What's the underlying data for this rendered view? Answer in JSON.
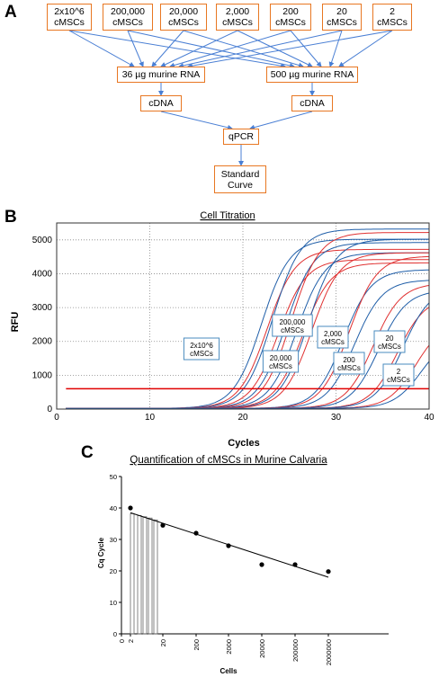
{
  "panels": {
    "a": "A",
    "b": "B",
    "c": "C"
  },
  "flowchart": {
    "cell_boxes": [
      "2x10^6\ncMSCs",
      "200,000\ncMSCs",
      "20,000\ncMSCs",
      "2,000\ncMSCs",
      "200\ncMSCs",
      "20\ncMSCs",
      "2\ncMSCs"
    ],
    "rna_left": "36 µg murine RNA",
    "rna_right": "500 µg murine RNA",
    "cdna_left": "cDNA",
    "cdna_right": "cDNA",
    "qpcr": "qPCR",
    "standard_curve": "Standard\nCurve",
    "border_color": "#e87722",
    "arrow_color": "#4a7fd4"
  },
  "chart_data": [
    {
      "type": "line",
      "title": "Cell Titration",
      "xlabel": "Cycles",
      "ylabel": "RFU",
      "xlim": [
        0,
        40
      ],
      "ylim": [
        0,
        5500
      ],
      "xticks": [
        0,
        10,
        20,
        30,
        40
      ],
      "yticks": [
        0,
        1000,
        2000,
        3000,
        4000,
        5000
      ],
      "tick_labels_x": [
        "0",
        "10",
        "20",
        "30",
        "40"
      ],
      "tick_labels_y": [
        "0",
        "1000",
        "2000",
        "3000",
        "4000",
        "5000"
      ],
      "threshold": 600,
      "threshold_color": "#e00000",
      "grid": "dotted",
      "series_colors": [
        "#1f5ea8",
        "#e03030"
      ],
      "groups": [
        {
          "label": "2x10^6\ncMSCs",
          "midpoints": [
            22.0,
            22.6,
            23.2,
            23.8
          ],
          "plateaus": [
            5000,
            4700,
            5300,
            4400
          ]
        },
        {
          "label": "200,000\ncMSCs",
          "midpoints": [
            24.6,
            25.2,
            25.8
          ],
          "plateaus": [
            4900,
            5200,
            4600
          ]
        },
        {
          "label": "20,000\ncMSCs",
          "midpoints": [
            26.4,
            27.0,
            27.4
          ],
          "plateaus": [
            4300,
            5000,
            4600
          ]
        },
        {
          "label": "2,000\ncMSCs",
          "midpoints": [
            30.8,
            31.4,
            32.0
          ],
          "plateaus": [
            4100,
            4500,
            3800
          ]
        },
        {
          "label": "200\ncMSCs",
          "midpoints": [
            34.0,
            34.6
          ],
          "plateaus": [
            3700,
            3500
          ]
        },
        {
          "label": "20\ncMSCs",
          "midpoints": [
            36.6,
            37.2
          ],
          "plateaus": [
            3300,
            3600
          ]
        },
        {
          "label": "2\ncMSCs",
          "midpoints": [
            38.6,
            39.2
          ],
          "plateaus": [
            2600,
            2200
          ]
        }
      ]
    },
    {
      "type": "scatter",
      "title": "Quantification of cMSCs in Murine Calvaria",
      "xlabel": "Cells",
      "ylabel": "Cq Cycle",
      "ylim": [
        0,
        50
      ],
      "yticks": [
        0,
        10,
        20,
        30,
        40,
        50
      ],
      "xtick_labels": [
        "0",
        "2",
        "20",
        "200",
        "2000",
        "20000",
        "200000",
        "2000000"
      ],
      "points": [
        {
          "x": "2",
          "y": 40.0
        },
        {
          "x": "20",
          "y": 34.5
        },
        {
          "x": "200",
          "y": 32.0
        },
        {
          "x": "2000",
          "y": 28.0
        },
        {
          "x": "20000",
          "y": 22.0
        },
        {
          "x": "200000",
          "y": 22.0
        },
        {
          "x": "2000000",
          "y": 19.8
        }
      ],
      "fit_line": {
        "start": {
          "x": "2",
          "y": 38.5
        },
        "end": {
          "x": "2000000",
          "y": 18.0
        }
      },
      "samples": [
        {
          "x": "4",
          "y": 38.2
        },
        {
          "x": "6",
          "y": 37.6
        },
        {
          "x": "9",
          "y": 37.2
        },
        {
          "x": "12",
          "y": 36.8
        },
        {
          "x": "15",
          "y": 36.2
        }
      ]
    }
  ]
}
